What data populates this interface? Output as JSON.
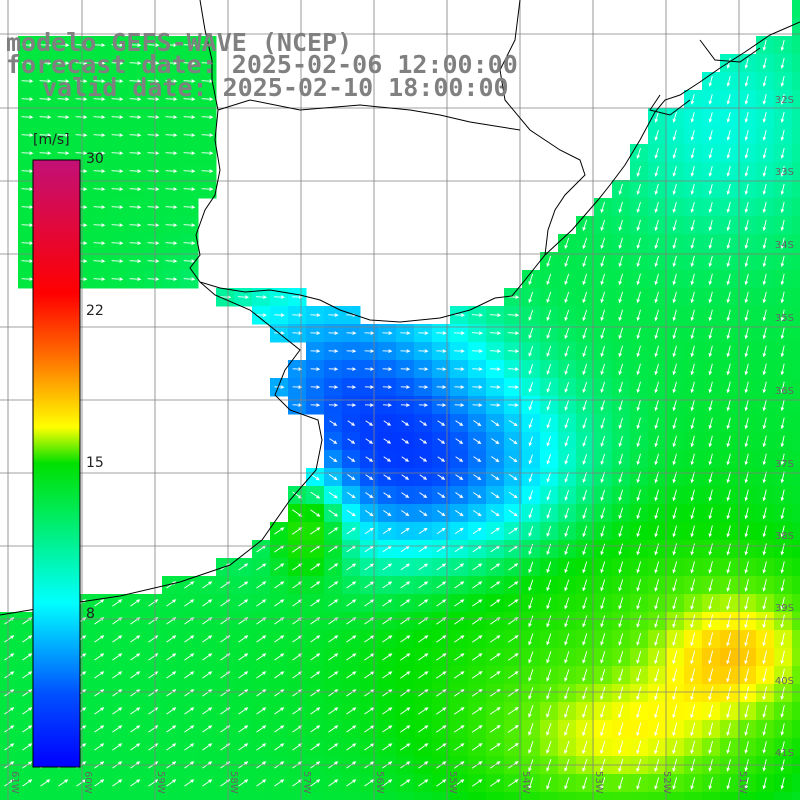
{
  "title": {
    "line1": "modelo GEFS-WAVE (NCEP)",
    "line2": "forecast date: 2025-02-06 12:00:00",
    "line3": "valid date: 2025-02-10 18:00:00"
  },
  "colorbar": {
    "unit": "[m/s]",
    "ticks": [
      "30",
      "22",
      "15",
      "8"
    ],
    "range": [
      0,
      30
    ],
    "stops": [
      "#c21077",
      "#ff0000",
      "#ff6a00",
      "#ffff00",
      "#00e000",
      "#00ffff",
      "#0050ff",
      "#0000ff"
    ]
  },
  "map": {
    "variable": "wind speed",
    "lat_labels": [
      "32S",
      "33S",
      "34S",
      "35S",
      "36S",
      "37S",
      "38S",
      "39S",
      "40S",
      "41S"
    ],
    "lon_labels": [
      "61W",
      "60W",
      "59W",
      "58W",
      "57W",
      "56W",
      "55W",
      "54W",
      "53W",
      "52W",
      "51W"
    ],
    "land_color": "#ffffff",
    "grid_color": "#808080",
    "coast_color": "#000000",
    "arrow_color": "#ffffff"
  }
}
